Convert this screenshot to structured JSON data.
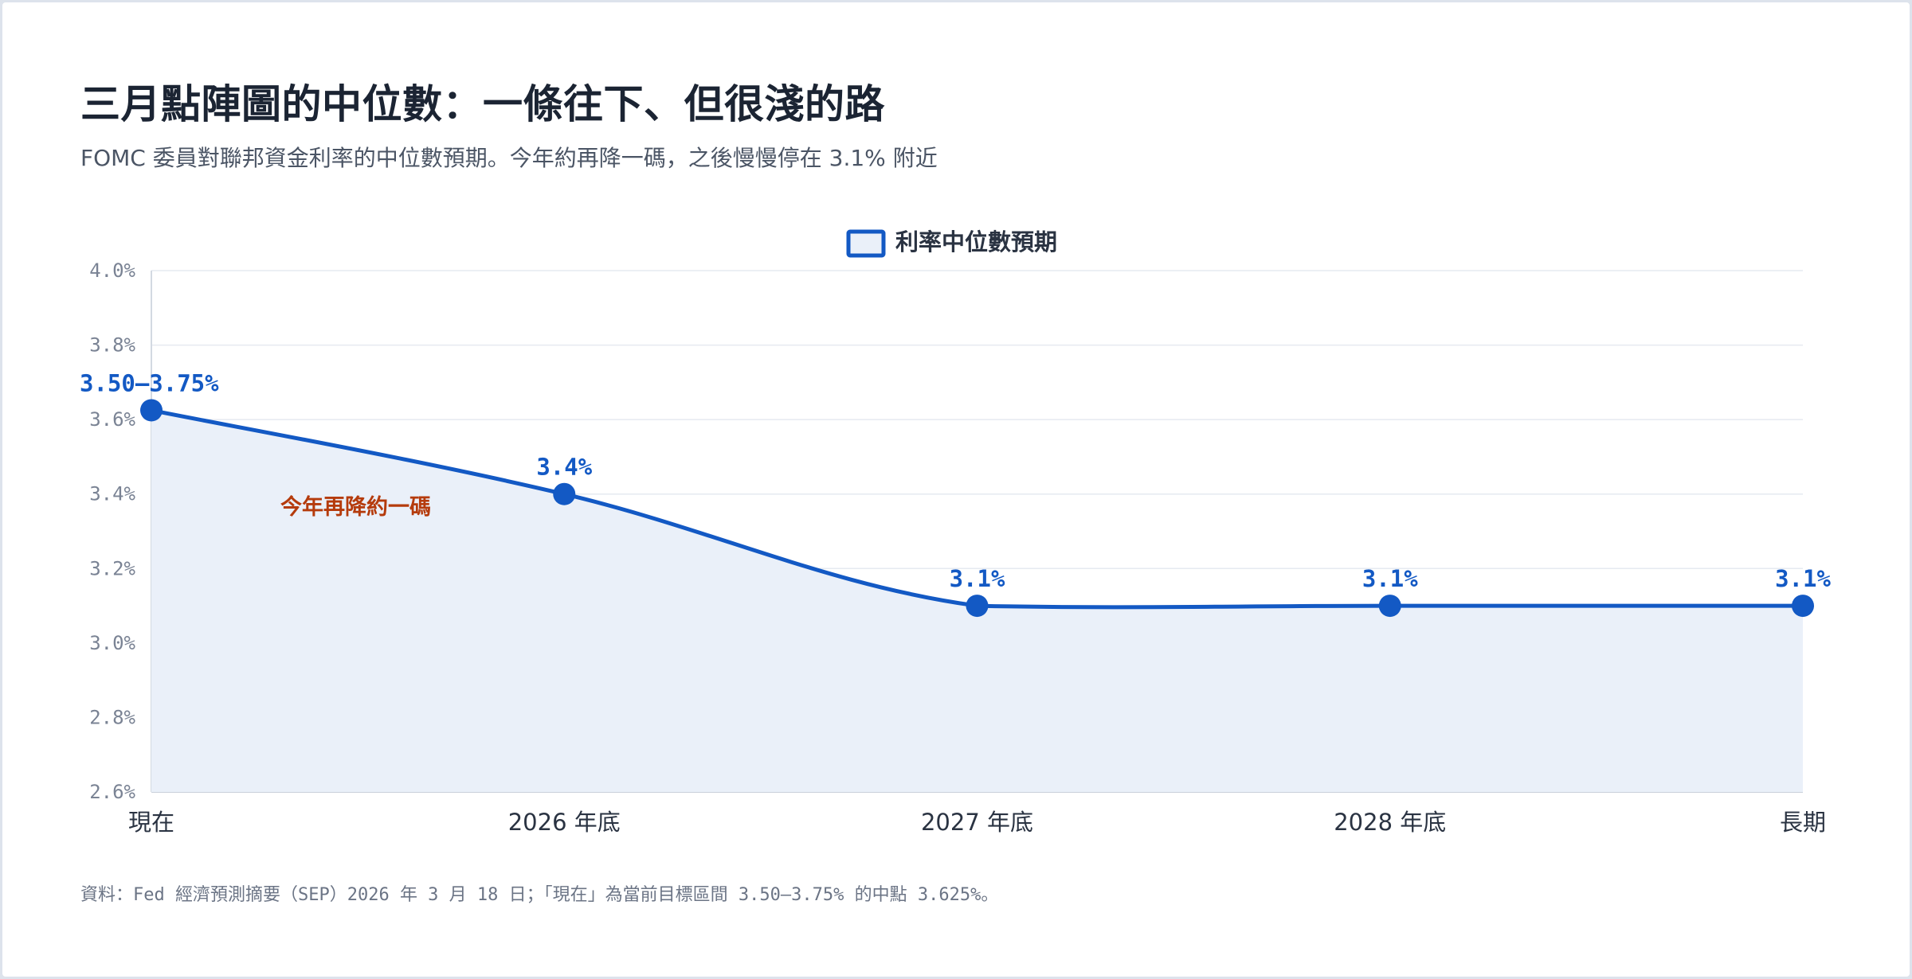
{
  "title": "三月點陣圖的中位數：一條往下、但很淺的路",
  "subtitle": "FOMC 委員對聯邦資金利率的中位數預期。今年約再降一碼，之後慢慢停在 3.1% 附近",
  "source": "資料：Fed 經濟預測摘要（SEP）2026 年 3 月 18 日；「現在」為當前目標區間 3.50–3.75% 的中點 3.625%。",
  "colors": {
    "line": "#1359c4",
    "fill": "#eaf0f9",
    "grid": "#e6eaf0",
    "tick": "#7a8394",
    "annotation": "#b53b0c"
  },
  "chart_data": {
    "type": "line",
    "categories": [
      "現在",
      "2026 年底",
      "2027 年底",
      "2028 年底",
      "長期"
    ],
    "series": [
      {
        "name": "利率中位數預期",
        "values": [
          3.625,
          3.4,
          3.1,
          3.1,
          3.1
        ],
        "data_labels": [
          "3.50–3.75%",
          "3.4%",
          "3.1%",
          "3.1%",
          "3.1%"
        ]
      }
    ],
    "ylim": [
      2.6,
      4.0
    ],
    "yticks": [
      "4.0%",
      "3.8%",
      "3.6%",
      "3.4%",
      "3.2%",
      "3.0%",
      "2.8%",
      "2.6%"
    ],
    "ytick_values": [
      4.0,
      3.8,
      3.6,
      3.4,
      3.2,
      3.0,
      2.8,
      2.6
    ],
    "xlabel": "",
    "ylabel": "",
    "legend": "top-center",
    "grid": true,
    "area_fill": true,
    "annotations": [
      {
        "text": "今年再降約一碼",
        "x_between": [
          "現在",
          "2026 年底"
        ]
      }
    ]
  }
}
